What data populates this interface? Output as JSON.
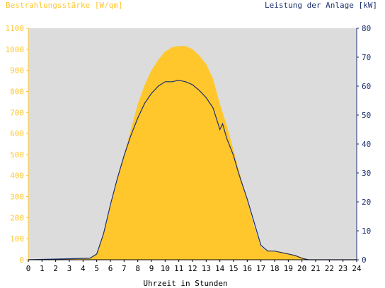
{
  "colors": {
    "background": "#ffffff",
    "plot_background": "#dcdcdc",
    "irradiance": "#ffc72c",
    "power": "#1c2f6e",
    "axis": "#000000"
  },
  "chart_data": {
    "type": "area",
    "left_axis_label": "Bestrahlungsstärke [W/qm]",
    "right_axis_label": "Leistung der Anlage [kW]",
    "xlabel": "Uhrzeit in Stunden",
    "x_ticks": [
      "0",
      "1",
      "2",
      "3",
      "4",
      "5",
      "6",
      "7",
      "8",
      "9",
      "10",
      "11",
      "12",
      "13",
      "14",
      "15",
      "16",
      "17",
      "18",
      "19",
      "20",
      "21",
      "22",
      "23",
      "24"
    ],
    "left_ticks": [
      "0",
      "100",
      "200",
      "300",
      "400",
      "500",
      "600",
      "700",
      "800",
      "900",
      "1000",
      "1100"
    ],
    "right_ticks": [
      "0",
      "10",
      "20",
      "30",
      "40",
      "50",
      "60",
      "70",
      "80"
    ],
    "xlim": [
      0,
      24
    ],
    "ylim_left": [
      0,
      1100
    ],
    "ylim_right": [
      0,
      80
    ],
    "series": [
      {
        "name": "Bestrahlungsstärke [W/qm]",
        "axis": "left",
        "style": "area",
        "x": [
          0,
          4.5,
          5,
          5.5,
          6,
          6.5,
          7,
          7.5,
          8,
          8.5,
          9,
          9.5,
          10,
          10.3,
          10.5,
          11,
          11.5,
          12,
          12.5,
          13,
          13.5,
          14,
          14.5,
          15,
          15.5,
          16,
          16.5,
          17,
          17.3,
          17.6,
          18,
          18.5,
          19,
          19.5,
          20,
          20.4,
          24
        ],
        "y": [
          0,
          5,
          30,
          120,
          250,
          380,
          500,
          620,
          740,
          830,
          900,
          950,
          990,
          1000,
          1010,
          1015,
          1015,
          1000,
          970,
          930,
          860,
          740,
          640,
          520,
          400,
          280,
          160,
          60,
          45,
          45,
          42,
          38,
          30,
          22,
          12,
          0,
          0
        ]
      },
      {
        "name": "Leistung der Anlage [kW]",
        "axis": "right",
        "style": "line",
        "x": [
          0,
          4.5,
          5,
          5.5,
          6,
          6.5,
          7,
          7.5,
          8,
          8.5,
          9,
          9.5,
          10,
          10.5,
          11,
          11.5,
          12,
          12.5,
          13,
          13.5,
          14,
          14.2,
          14.5,
          15,
          15.3,
          15.5,
          16,
          16.5,
          17,
          17.5,
          18,
          18.5,
          19,
          19.5,
          20,
          20.5,
          24
        ],
        "y": [
          0,
          0.5,
          2,
          9,
          19,
          28,
          36,
          43,
          49,
          54,
          57.5,
          60,
          61.5,
          61.5,
          62,
          61.5,
          60.5,
          58.5,
          56,
          52.5,
          45,
          47,
          42,
          36,
          31,
          28,
          21,
          13,
          5,
          3,
          3,
          2.5,
          2,
          1.5,
          0.5,
          0,
          0
        ]
      }
    ]
  }
}
